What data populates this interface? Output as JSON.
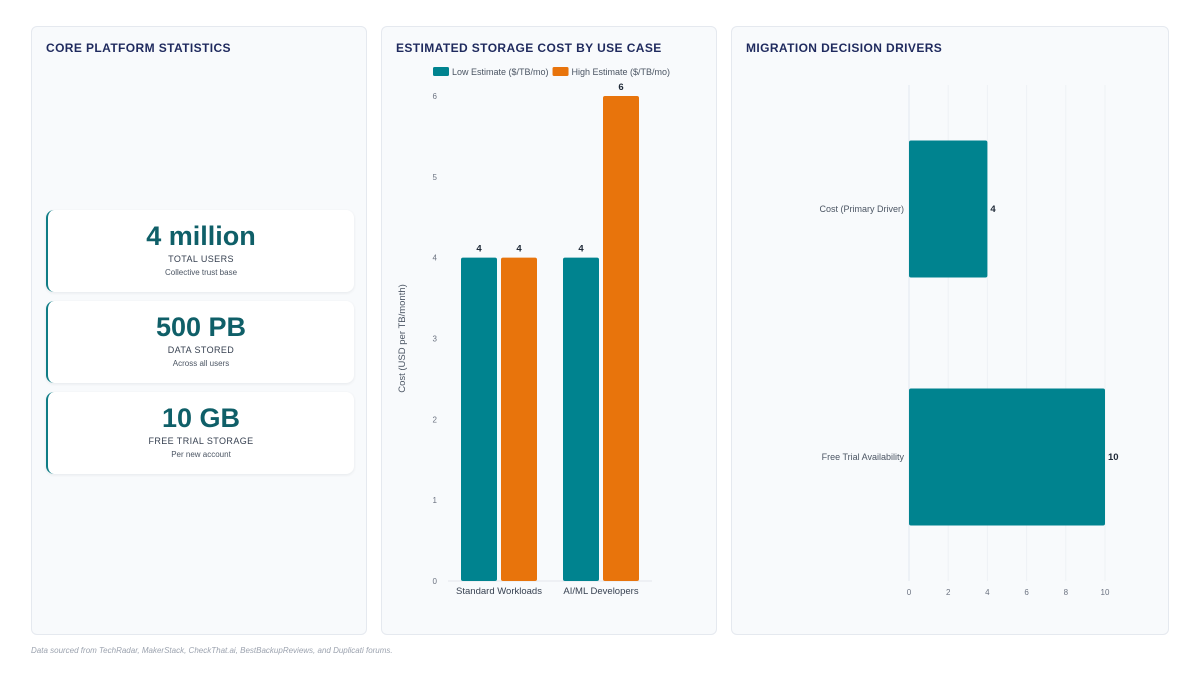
{
  "stats_panel": {
    "title": "CORE PLATFORM STATISTICS",
    "cards": [
      {
        "value": "4 million",
        "label": "TOTAL USERS",
        "sub": "Collective trust base"
      },
      {
        "value": "500 PB",
        "label": "DATA STORED",
        "sub": "Across all users"
      },
      {
        "value": "10 GB",
        "label": "FREE TRIAL STORAGE",
        "sub": "Per new account"
      }
    ]
  },
  "cost_panel": {
    "title": "ESTIMATED STORAGE COST BY USE CASE"
  },
  "drivers_panel": {
    "title": "MIGRATION DECISION DRIVERS"
  },
  "footer": "Data sourced from TechRadar, MakerStack, CheckThat.ai, BestBackupReviews, and Duplicati forums.",
  "colors": {
    "teal": "#00838f",
    "orange": "#e8740c"
  },
  "chart_data": [
    {
      "type": "bar",
      "title": "ESTIMATED STORAGE COST BY USE CASE",
      "categories": [
        "Standard Workloads",
        "AI/ML Developers"
      ],
      "series": [
        {
          "name": "Low Estimate ($/TB/mo)",
          "values": [
            4,
            4
          ],
          "color": "#00838f"
        },
        {
          "name": "High Estimate ($/TB/mo)",
          "values": [
            4,
            6
          ],
          "color": "#e8740c"
        }
      ],
      "ylabel": "Cost (USD per TB/month)",
      "ylim": [
        0,
        6
      ],
      "yticks": [
        0,
        1,
        2,
        3,
        4,
        5,
        6
      ],
      "legend": "top",
      "grid": false
    },
    {
      "type": "bar",
      "orientation": "horizontal",
      "title": "MIGRATION DECISION DRIVERS",
      "categories": [
        "Cost (Primary Driver)",
        "Free Trial Availability"
      ],
      "values": [
        4,
        10
      ],
      "xlim": [
        0,
        10
      ],
      "xticks": [
        0,
        2,
        4,
        6,
        8,
        10
      ],
      "color": "#00838f",
      "grid": true
    }
  ]
}
